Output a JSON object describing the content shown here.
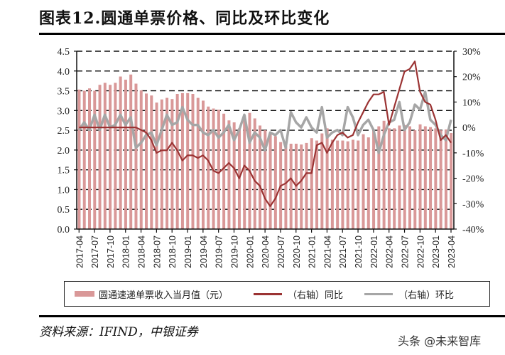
{
  "header": {
    "title": "图表12.圆通单票价格、同比及环比变化"
  },
  "footer": {
    "source": "资料来源：IFIND，中银证券",
    "watermark": "头条 @未来智库"
  },
  "legend": {
    "items": [
      {
        "label": "圆通速递单票收入当月值（元）",
        "type": "bar",
        "color": "#d99898"
      },
      {
        "label": "（右轴）同比",
        "type": "line",
        "color": "#9b3333"
      },
      {
        "label": "（右轴）环比",
        "type": "line",
        "color": "#a6a6a6"
      }
    ]
  },
  "chart_data": {
    "type": "bar",
    "title": "图表12.圆通单票价格、同比及环比变化",
    "xlabel": "",
    "ylabel": "",
    "ylim": [
      0,
      4.5
    ],
    "y2lim": [
      -40,
      30
    ],
    "grid": true,
    "legend_position": "bottom",
    "left_ticks": [
      "0.0",
      "0.5",
      "1.0",
      "1.5",
      "2.0",
      "2.5",
      "3.0",
      "3.5",
      "4.0",
      "4.5"
    ],
    "right_ticks": [
      "-40%",
      "-30%",
      "-20%",
      "-10%",
      "0%",
      "10%",
      "20%",
      "30%"
    ],
    "x_tick_labels": [
      "2017-04",
      "2017-07",
      "2017-10",
      "2018-01",
      "2018-04",
      "2018-07",
      "2018-10",
      "2019-01",
      "2019-04",
      "2019-07",
      "2019-10",
      "2020-01",
      "2020-04",
      "2020-07",
      "2020-10",
      "2021-01",
      "2021-04",
      "2021-07",
      "2021-10",
      "2022-01",
      "2022-04",
      "2022-07",
      "2022-10",
      "2023-01",
      "2023-04"
    ],
    "categories": [
      "2017-04",
      "2017-05",
      "2017-06",
      "2017-07",
      "2017-08",
      "2017-09",
      "2017-10",
      "2017-11",
      "2017-12",
      "2018-01",
      "2018-02",
      "2018-03",
      "2018-04",
      "2018-05",
      "2018-06",
      "2018-07",
      "2018-08",
      "2018-09",
      "2018-10",
      "2018-11",
      "2018-12",
      "2019-01",
      "2019-02",
      "2019-03",
      "2019-04",
      "2019-05",
      "2019-06",
      "2019-07",
      "2019-08",
      "2019-09",
      "2019-10",
      "2019-11",
      "2019-12",
      "2020-01",
      "2020-02",
      "2020-03",
      "2020-04",
      "2020-05",
      "2020-06",
      "2020-07",
      "2020-08",
      "2020-09",
      "2020-10",
      "2020-11",
      "2020-12",
      "2021-01",
      "2021-02",
      "2021-03",
      "2021-04",
      "2021-05",
      "2021-06",
      "2021-07",
      "2021-08",
      "2021-09",
      "2021-10",
      "2021-11",
      "2021-12",
      "2022-01",
      "2022-02",
      "2022-03",
      "2022-04",
      "2022-05",
      "2022-06",
      "2022-07",
      "2022-08",
      "2022-09",
      "2022-10",
      "2022-11",
      "2022-12",
      "2023-01",
      "2023-02",
      "2023-03",
      "2023-04"
    ],
    "series": [
      {
        "name": "圆通速递单票收入当月值（元）",
        "axis": "left",
        "type": "bar",
        "values": [
          3.53,
          3.5,
          3.56,
          3.5,
          3.65,
          3.7,
          3.65,
          3.7,
          3.86,
          3.78,
          3.91,
          3.68,
          3.51,
          3.43,
          3.38,
          3.2,
          3.28,
          3.32,
          3.29,
          3.42,
          3.44,
          3.44,
          3.42,
          3.32,
          3.25,
          3.1,
          3.05,
          3.02,
          2.92,
          2.75,
          2.7,
          2.55,
          2.88,
          2.94,
          2.8,
          2.62,
          2.5,
          2.4,
          2.35,
          2.2,
          2.1,
          2.16,
          2.16,
          2.14,
          2.18,
          2.3,
          2.24,
          2.42,
          2.55,
          2.26,
          2.24,
          2.24,
          2.22,
          2.26,
          2.24,
          2.4,
          2.32,
          2.5,
          2.6,
          2.74,
          2.55,
          2.55,
          2.62,
          2.63,
          2.6,
          2.5,
          2.65,
          2.6,
          2.58,
          2.55,
          2.5,
          2.52,
          2.43
        ]
      },
      {
        "name": "（右轴）同比",
        "axis": "right",
        "type": "line",
        "values": [
          0,
          0,
          0,
          0,
          0,
          0,
          0,
          0,
          0,
          0,
          0,
          0,
          -1,
          -2,
          -5,
          -10,
          -9,
          -9,
          -6,
          -9,
          -13,
          -11,
          -11,
          -12,
          -11,
          -13,
          -17,
          -18,
          -16,
          -14,
          -16,
          -20,
          -15,
          -17,
          -21,
          -23,
          -28,
          -31,
          -28,
          -23,
          -22,
          -20,
          -23,
          -21,
          -18,
          -18,
          -7,
          -6,
          -10,
          -6,
          -3,
          -2,
          -4,
          -3,
          2,
          6,
          10,
          13,
          13,
          14,
          1,
          8,
          15,
          22,
          23,
          26,
          14,
          10,
          9,
          3,
          -5,
          -3,
          -6
        ]
      },
      {
        "name": "（右轴）环比",
        "axis": "right",
        "type": "line",
        "values": [
          -1,
          2,
          -1,
          5,
          -1,
          5,
          0,
          1,
          5,
          1,
          4,
          -8,
          -6,
          -3,
          -2,
          -7,
          -1,
          5,
          1,
          2,
          8,
          3,
          1,
          1,
          -2,
          -3,
          -1,
          -4,
          -2,
          1,
          -5,
          -1,
          5,
          -6,
          -2,
          -4,
          -9,
          -2,
          -3,
          -1,
          -8,
          6,
          2,
          0,
          4,
          0,
          -2,
          8,
          -4,
          -2,
          -1,
          -3,
          8,
          4,
          -3,
          1,
          3,
          -1,
          -10,
          -3,
          2,
          3,
          10,
          -1,
          2,
          9,
          7,
          14,
          3,
          1,
          -3,
          -5,
          3
        ]
      }
    ]
  }
}
